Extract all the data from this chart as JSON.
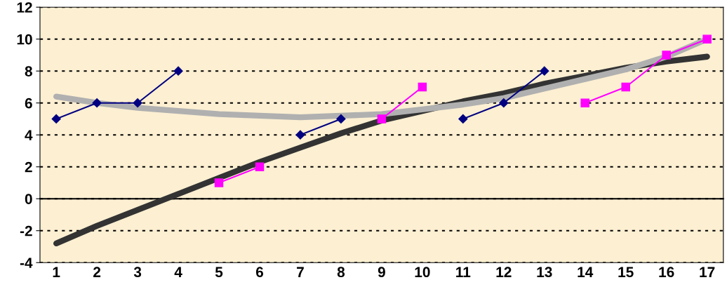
{
  "chart_data": {
    "type": "line",
    "categories": [
      "1",
      "2",
      "3",
      "4",
      "5",
      "6",
      "7",
      "8",
      "9",
      "10",
      "11",
      "12",
      "13",
      "14",
      "15",
      "16",
      "17"
    ],
    "ylim": [
      -4,
      12
    ],
    "yticks": [
      -4,
      -2,
      0,
      2,
      4,
      6,
      8,
      10,
      12
    ],
    "grid": "y",
    "legend": false,
    "series": [
      {
        "color": "#000080",
        "marker": "diamond",
        "values": [
          5,
          6,
          6,
          8,
          null,
          null,
          4,
          5,
          null,
          null,
          5,
          6,
          8,
          null,
          null,
          null,
          null
        ]
      },
      {
        "color": "#ff00ff",
        "marker": "square",
        "values": [
          null,
          null,
          null,
          null,
          1,
          2,
          null,
          null,
          5,
          7,
          null,
          null,
          null,
          6,
          7,
          9,
          10
        ]
      },
      {
        "color": "#333333",
        "marker": "none",
        "values": [
          -2.8,
          -1.7,
          -0.7,
          0.3,
          1.3,
          2.3,
          3.2,
          4.1,
          4.9,
          5.5,
          6.1,
          6.6,
          7.2,
          7.7,
          8.2,
          8.6,
          8.9
        ]
      },
      {
        "color": "#b0b0b0",
        "marker": "none",
        "values": [
          6.4,
          6.0,
          5.7,
          5.5,
          5.3,
          5.2,
          5.1,
          5.2,
          5.3,
          5.6,
          5.9,
          6.3,
          6.9,
          7.5,
          8.1,
          8.9,
          10.0
        ]
      }
    ]
  }
}
